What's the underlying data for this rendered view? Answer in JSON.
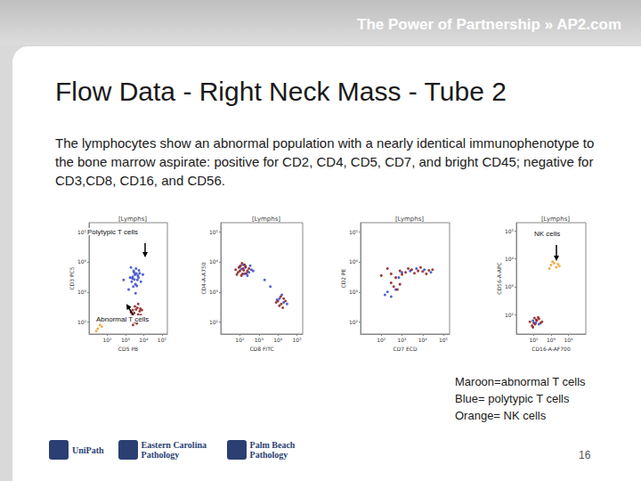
{
  "header": {
    "tagline": "The Power of Partnership » AP2.com"
  },
  "title": "Flow Data - Right Neck Mass - Tube 2",
  "body": "The lymphocytes show an abnormal population with a nearly identical immunophenotype to the bone marrow aspirate: positive for CD2, CD4, CD5, CD7, and bright CD45; negative for CD3,CD8, CD16, and CD56.",
  "chart_data": [
    {
      "type": "scatter",
      "title": "[Lymphs]",
      "x_label": "CD5 PB",
      "y_label": "CD3 PC5",
      "log": true,
      "grid": false,
      "xlim": [
        10,
        200000
      ],
      "ylim": [
        40,
        200000
      ],
      "xticks": [
        {
          "value": 100,
          "label": "10²"
        },
        {
          "value": 1000,
          "label": "10³"
        },
        {
          "value": 10000,
          "label": "10⁴"
        },
        {
          "value": 100000,
          "label": "10⁵"
        }
      ],
      "yticks": [
        {
          "value": 100,
          "label": "10²"
        },
        {
          "value": 1000,
          "label": "10³"
        },
        {
          "value": 10000,
          "label": "10⁴"
        },
        {
          "value": 100000,
          "label": "10⁵"
        }
      ],
      "annotations": [
        "Polytypic T cells",
        "Abnormal T cells"
      ],
      "series": [
        {
          "name": "Blue",
          "color": "#3347c9",
          "marker": "circle",
          "values": [
            [
              2500,
              3200
            ],
            [
              3100,
              2600
            ],
            [
              4000,
              4100
            ],
            [
              2800,
              5000
            ],
            [
              3500,
              1800
            ],
            [
              5200,
              3000
            ],
            [
              2200,
              2200
            ],
            [
              4500,
              2500
            ],
            [
              3300,
              3700
            ],
            [
              6000,
              4200
            ],
            [
              2700,
              1500
            ],
            [
              3800,
              6000
            ],
            [
              1800,
              3000
            ],
            [
              4200,
              1600
            ],
            [
              5500,
              5200
            ],
            [
              3000,
              4400
            ],
            [
              2400,
              2800
            ],
            [
              4800,
              3500
            ],
            [
              1500,
              1200
            ],
            [
              7000,
              2200
            ],
            [
              800,
              2500
            ],
            [
              3600,
              900
            ],
            [
              2000,
              6500
            ],
            [
              9000,
              3800
            ]
          ]
        },
        {
          "name": "Maroon",
          "color": "#8b1c1c",
          "marker": "circle",
          "values": [
            [
              3000,
              200
            ],
            [
              4000,
              150
            ],
            [
              2500,
              250
            ],
            [
              5000,
              180
            ],
            [
              3500,
              120
            ],
            [
              2200,
              160
            ],
            [
              6000,
              230
            ],
            [
              4500,
              300
            ],
            [
              3200,
              100
            ],
            [
              2800,
              140
            ],
            [
              5500,
              130
            ],
            [
              3800,
              260
            ],
            [
              7000,
              170
            ],
            [
              2000,
              210
            ],
            [
              4200,
              90
            ],
            [
              3300,
              330
            ],
            [
              9000,
              150
            ],
            [
              1500,
              120
            ],
            [
              6500,
              280
            ],
            [
              2600,
              80
            ],
            [
              5000,
              400
            ],
            [
              8000,
              250
            ]
          ]
        },
        {
          "name": "Orange",
          "color": "#f0a030",
          "marker": "circle",
          "values": [
            [
              30,
              60
            ],
            [
              40,
              80
            ],
            [
              25,
              50
            ],
            [
              50,
              70
            ]
          ]
        }
      ]
    },
    {
      "type": "scatter",
      "title": "[Lymphs]",
      "x_label": "CD8 FITC",
      "y_label": "CD4-A-A750",
      "log": true,
      "grid": false,
      "xlim": [
        10,
        200000
      ],
      "ylim": [
        40,
        200000
      ],
      "xticks": [
        {
          "value": 100,
          "label": "10²"
        },
        {
          "value": 1000,
          "label": "10³"
        },
        {
          "value": 10000,
          "label": "10⁴"
        },
        {
          "value": 100000,
          "label": "10⁵"
        }
      ],
      "yticks": [
        {
          "value": 100,
          "label": "10²"
        },
        {
          "value": 1000,
          "label": "10³"
        },
        {
          "value": 10000,
          "label": "10⁴"
        },
        {
          "value": 100000,
          "label": "10⁵"
        }
      ],
      "annotations": [],
      "series": [
        {
          "name": "Blue",
          "color": "#3347c9",
          "marker": "circle",
          "values": [
            [
              200,
              6500
            ],
            [
              300,
              4500
            ],
            [
              150,
              8000
            ],
            [
              400,
              5500
            ],
            [
              250,
              3500
            ],
            [
              100,
              7000
            ],
            [
              350,
              7500
            ],
            [
              500,
              5000
            ],
            [
              180,
              4000
            ],
            [
              120,
              5800
            ],
            [
              12000,
              600
            ],
            [
              20000,
              450
            ],
            [
              9000,
              550
            ],
            [
              16000,
              800
            ],
            [
              30000,
              400
            ],
            [
              2000,
              2500
            ],
            [
              4000,
              1500
            ]
          ]
        },
        {
          "name": "Maroon",
          "color": "#8b1c1c",
          "marker": "circle",
          "values": [
            [
              100,
              5000
            ],
            [
              150,
              6000
            ],
            [
              80,
              4500
            ],
            [
              200,
              7000
            ],
            [
              120,
              3500
            ],
            [
              60,
              5500
            ],
            [
              250,
              5000
            ],
            [
              180,
              8000
            ],
            [
              90,
              6500
            ],
            [
              140,
              4000
            ],
            [
              300,
              6000
            ],
            [
              110,
              7500
            ],
            [
              70,
              3800
            ],
            [
              220,
              4200
            ],
            [
              160,
              5200
            ],
            [
              130,
              9000
            ],
            [
              10000,
              500
            ],
            [
              15000,
              400
            ],
            [
              20000,
              600
            ],
            [
              12000,
              350
            ],
            [
              8000,
              450
            ],
            [
              25000,
              500
            ],
            [
              18000,
              300
            ],
            [
              14000,
              700
            ]
          ]
        }
      ]
    },
    {
      "type": "scatter",
      "title": "[Lymphs]",
      "x_label": "CD7 ECD",
      "y_label": "CD2 PE",
      "log": true,
      "grid": false,
      "xlim": [
        10,
        200000
      ],
      "ylim": [
        40,
        200000
      ],
      "xticks": [
        {
          "value": 100,
          "label": "10²"
        },
        {
          "value": 1000,
          "label": "10³"
        },
        {
          "value": 10000,
          "label": "10⁴"
        },
        {
          "value": 100000,
          "label": "10⁵"
        }
      ],
      "yticks": [
        {
          "value": 100,
          "label": "10²"
        },
        {
          "value": 1000,
          "label": "10³"
        },
        {
          "value": 10000,
          "label": "10⁴"
        },
        {
          "value": 100000,
          "label": "10⁵"
        }
      ],
      "annotations": [],
      "series": [
        {
          "name": "Blue",
          "color": "#3347c9",
          "marker": "circle",
          "values": [
            [
              200,
              1000
            ],
            [
              300,
              700
            ],
            [
              500,
              1200
            ],
            [
              1000,
              4500
            ],
            [
              2500,
              5000
            ],
            [
              5000,
              6000
            ],
            [
              12000,
              5500
            ],
            [
              25000,
              4500
            ],
            [
              700,
              3000
            ],
            [
              150,
              800
            ]
          ]
        },
        {
          "name": "Maroon",
          "color": "#8b1c1c",
          "marker": "circle",
          "values": [
            [
              100,
              3500
            ],
            [
              300,
              4000
            ],
            [
              800,
              5000
            ],
            [
              1500,
              4500
            ],
            [
              3000,
              5500
            ],
            [
              6000,
              5000
            ],
            [
              10000,
              4800
            ],
            [
              20000,
              5200
            ],
            [
              500,
              3000
            ],
            [
              2000,
              6000
            ],
            [
              4000,
              4200
            ],
            [
              8000,
              6500
            ],
            [
              15000,
              4000
            ],
            [
              200,
              6000
            ],
            [
              1000,
              3800
            ],
            [
              30000,
              5500
            ],
            [
              400,
              1500
            ],
            [
              600,
              1200
            ],
            [
              800,
              1800
            ],
            [
              300,
              2000
            ]
          ]
        }
      ]
    },
    {
      "type": "scatter",
      "title": "[Lymphs]",
      "x_label": "CD16-A-AF700",
      "y_label": "CD56-A-APC",
      "log": true,
      "grid": false,
      "xlim": [
        10,
        100000
      ],
      "ylim": [
        20,
        200000
      ],
      "xticks": [
        {
          "value": 100,
          "label": "10²"
        },
        {
          "value": 1000,
          "label": "10³"
        },
        {
          "value": 10000,
          "label": "10⁴"
        }
      ],
      "yticks": [
        {
          "value": 100,
          "label": "10²"
        },
        {
          "value": 1000,
          "label": "10³"
        },
        {
          "value": 10000,
          "label": "10⁴"
        },
        {
          "value": 100000,
          "label": "10⁵"
        }
      ],
      "annotations": [
        "NK cells"
      ],
      "series": [
        {
          "name": "Maroon",
          "color": "#8b1c1c",
          "marker": "circle",
          "values": [
            [
              100,
              50
            ],
            [
              150,
              60
            ],
            [
              80,
              40
            ],
            [
              200,
              70
            ],
            [
              120,
              45
            ],
            [
              60,
              55
            ],
            [
              250,
              50
            ],
            [
              180,
              80
            ],
            [
              90,
              35
            ],
            [
              140,
              65
            ],
            [
              300,
              55
            ],
            [
              110,
              75
            ]
          ]
        },
        {
          "name": "Blue",
          "color": "#3347c9",
          "marker": "circle",
          "values": [
            [
              130,
              50
            ],
            [
              200,
              45
            ],
            [
              90,
              60
            ]
          ]
        },
        {
          "name": "Orange",
          "color": "#f0a030",
          "marker": "circle",
          "values": [
            [
              1000,
              6000
            ],
            [
              2000,
              5000
            ],
            [
              1500,
              7000
            ],
            [
              800,
              4500
            ],
            [
              3000,
              5500
            ],
            [
              1200,
              8000
            ],
            [
              2500,
              6500
            ]
          ]
        }
      ]
    }
  ],
  "color_key": [
    "Maroon=abnormal T cells",
    "Blue= polytypic T cells",
    "Orange= NK cells"
  ],
  "footer": {
    "logos": [
      "UniPath",
      "Eastern Carolina Pathology",
      "Palm Beach Pathology"
    ],
    "page": 16
  }
}
